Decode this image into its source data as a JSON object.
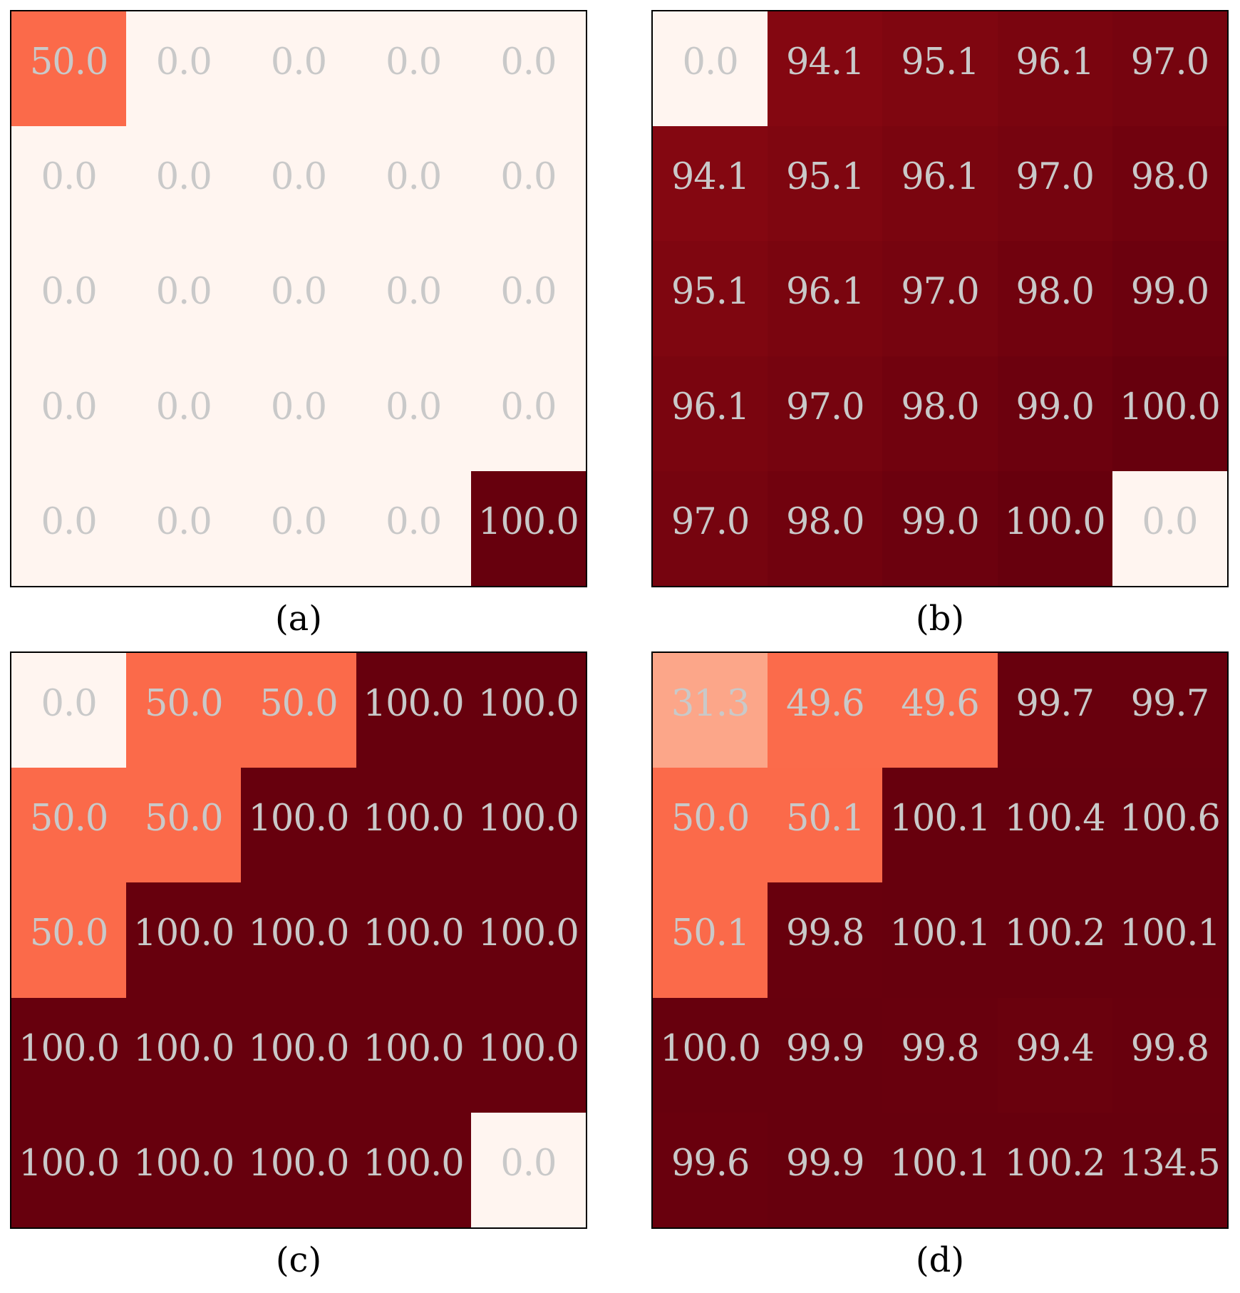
{
  "chart_data": [
    {
      "type": "heatmap",
      "caption": "(a)",
      "rows": 5,
      "cols": 5,
      "vmin": 0,
      "vmax": 100,
      "colormap": "Reds",
      "values": [
        [
          50.0,
          0.0,
          0.0,
          0.0,
          0.0
        ],
        [
          0.0,
          0.0,
          0.0,
          0.0,
          0.0
        ],
        [
          0.0,
          0.0,
          0.0,
          0.0,
          0.0
        ],
        [
          0.0,
          0.0,
          0.0,
          0.0,
          0.0
        ],
        [
          0.0,
          0.0,
          0.0,
          0.0,
          100.0
        ]
      ],
      "labels": [
        [
          "50.0",
          "0.0",
          "0.0",
          "0.0",
          "0.0"
        ],
        [
          "0.0",
          "0.0",
          "0.0",
          "0.0",
          "0.0"
        ],
        [
          "0.0",
          "0.0",
          "0.0",
          "0.0",
          "0.0"
        ],
        [
          "0.0",
          "0.0",
          "0.0",
          "0.0",
          "0.0"
        ],
        [
          "0.0",
          "0.0",
          "0.0",
          "0.0",
          "100.0"
        ]
      ]
    },
    {
      "type": "heatmap",
      "caption": "(b)",
      "rows": 5,
      "cols": 5,
      "vmin": 0,
      "vmax": 100,
      "colormap": "Reds",
      "values": [
        [
          0.0,
          94.1,
          95.1,
          96.1,
          97.0
        ],
        [
          94.1,
          95.1,
          96.1,
          97.0,
          98.0
        ],
        [
          95.1,
          96.1,
          97.0,
          98.0,
          99.0
        ],
        [
          96.1,
          97.0,
          98.0,
          99.0,
          100.0
        ],
        [
          97.0,
          98.0,
          99.0,
          100.0,
          0.0
        ]
      ],
      "labels": [
        [
          "0.0",
          "94.1",
          "95.1",
          "96.1",
          "97.0"
        ],
        [
          "94.1",
          "95.1",
          "96.1",
          "97.0",
          "98.0"
        ],
        [
          "95.1",
          "96.1",
          "97.0",
          "98.0",
          "99.0"
        ],
        [
          "96.1",
          "97.0",
          "98.0",
          "99.0",
          "100.0"
        ],
        [
          "97.0",
          "98.0",
          "99.0",
          "100.0",
          "0.0"
        ]
      ]
    },
    {
      "type": "heatmap",
      "caption": "(c)",
      "rows": 5,
      "cols": 5,
      "vmin": 0,
      "vmax": 100,
      "colormap": "Reds",
      "values": [
        [
          0.0,
          50.0,
          50.0,
          100.0,
          100.0
        ],
        [
          50.0,
          50.0,
          100.0,
          100.0,
          100.0
        ],
        [
          50.0,
          100.0,
          100.0,
          100.0,
          100.0
        ],
        [
          100.0,
          100.0,
          100.0,
          100.0,
          100.0
        ],
        [
          100.0,
          100.0,
          100.0,
          100.0,
          0.0
        ]
      ],
      "labels": [
        [
          "0.0",
          "50.0",
          "50.0",
          "100.0",
          "100.0"
        ],
        [
          "50.0",
          "50.0",
          "100.0",
          "100.0",
          "100.0"
        ],
        [
          "50.0",
          "100.0",
          "100.0",
          "100.0",
          "100.0"
        ],
        [
          "100.0",
          "100.0",
          "100.0",
          "100.0",
          "100.0"
        ],
        [
          "100.0",
          "100.0",
          "100.0",
          "100.0",
          "0.0"
        ]
      ]
    },
    {
      "type": "heatmap",
      "caption": "(d)",
      "rows": 5,
      "cols": 5,
      "vmin": 0,
      "vmax": 100,
      "colormap": "Reds",
      "values": [
        [
          31.3,
          49.6,
          49.6,
          99.7,
          99.7
        ],
        [
          50.0,
          50.1,
          100.1,
          100.4,
          100.6
        ],
        [
          50.1,
          99.8,
          100.1,
          100.2,
          100.1
        ],
        [
          100.0,
          99.9,
          99.8,
          99.4,
          99.8
        ],
        [
          99.6,
          99.9,
          100.1,
          100.2,
          134.5
        ]
      ],
      "labels": [
        [
          "31.3",
          "49.6",
          "49.6",
          "99.7",
          "99.7"
        ],
        [
          "50.0",
          "50.1",
          "100.1",
          "100.4",
          "100.6"
        ],
        [
          "50.1",
          "99.8",
          "100.1",
          "100.2",
          "100.1"
        ],
        [
          "100.0",
          "99.9",
          "99.8",
          "99.4",
          "99.8"
        ],
        [
          "99.6",
          "99.9",
          "100.1",
          "100.2",
          "134.5"
        ]
      ]
    }
  ],
  "colors": {
    "label_text": "#c9c9c9",
    "caption_text": "#000000",
    "border": "#000000"
  }
}
